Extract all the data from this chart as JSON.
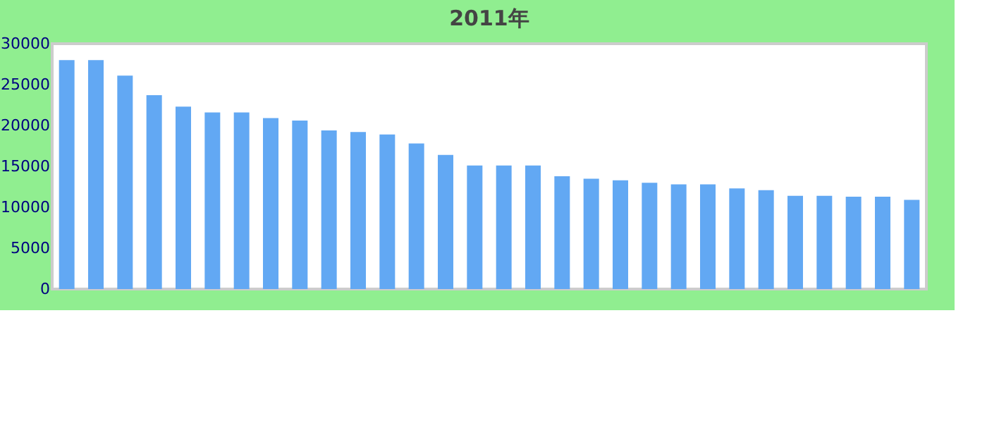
{
  "chart_data": {
    "type": "bar",
    "subtitle": "2011年",
    "categories": [
      null,
      null,
      null,
      null,
      null,
      null,
      null,
      null,
      null,
      null,
      null,
      null,
      null,
      null,
      null,
      null,
      null,
      null,
      null,
      null,
      null,
      null,
      null,
      null,
      null,
      null,
      null,
      null,
      null,
      null
    ],
    "values": [
      28000,
      28000,
      26100,
      23700,
      22300,
      21600,
      21600,
      20900,
      20600,
      19400,
      19200,
      18900,
      17800,
      16400,
      15100,
      15100,
      15100,
      13800,
      13500,
      13300,
      13000,
      12800,
      12800,
      12300,
      12100,
      11400,
      11400,
      11300,
      11300,
      10900
    ],
    "color": "#62a8f3",
    "ylim": [
      0,
      30000
    ],
    "yticks": [
      0,
      5000,
      10000,
      15000,
      20000,
      25000,
      30000
    ],
    "grid": false
  }
}
